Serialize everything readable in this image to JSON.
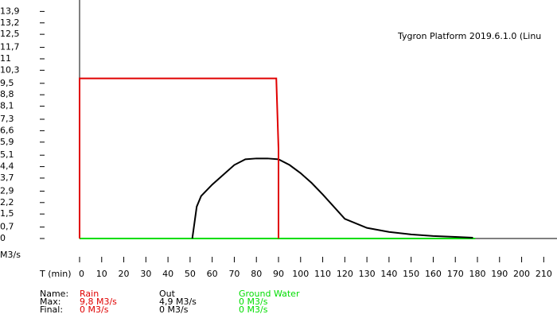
{
  "chart_data": {
    "type": "line",
    "title": "Tygron Platform 2019.6.1.0 (Linu",
    "y_label": "M3/s",
    "x_label": "T (min)",
    "xlim": [
      0,
      216
    ],
    "ylim": [
      0,
      14.6
    ],
    "xticks": [
      0,
      10,
      20,
      30,
      40,
      50,
      60,
      70,
      80,
      90,
      100,
      110,
      120,
      130,
      140,
      150,
      160,
      170,
      180,
      190,
      200,
      210
    ],
    "yticks": [
      {
        "value": 0,
        "label": "0"
      },
      {
        "value": 0.7,
        "label": "0,7"
      },
      {
        "value": 1.5,
        "label": "1,5"
      },
      {
        "value": 2.2,
        "label": "2,2"
      },
      {
        "value": 2.9,
        "label": "2,9"
      },
      {
        "value": 3.7,
        "label": "3,7"
      },
      {
        "value": 4.4,
        "label": "4,4"
      },
      {
        "value": 5.1,
        "label": "5,1"
      },
      {
        "value": 5.9,
        "label": "5,9"
      },
      {
        "value": 6.6,
        "label": "6,6"
      },
      {
        "value": 7.3,
        "label": "7,3"
      },
      {
        "value": 8.1,
        "label": "8,1"
      },
      {
        "value": 8.8,
        "label": "8,8"
      },
      {
        "value": 9.5,
        "label": "9,5"
      },
      {
        "value": 10.3,
        "label": "10,3"
      },
      {
        "value": 11,
        "label": "11"
      },
      {
        "value": 11.7,
        "label": "11,7"
      },
      {
        "value": 12.5,
        "label": "12,5"
      },
      {
        "value": 13.2,
        "label": "13,2"
      },
      {
        "value": 13.9,
        "label": "13,9"
      }
    ],
    "series": [
      {
        "name": "Rain",
        "color": "#e00000",
        "x": [
          0,
          0,
          89,
          90,
          90
        ],
        "values": [
          0,
          9.8,
          9.8,
          5.5,
          0
        ]
      },
      {
        "name": "Out",
        "color": "#000000",
        "x": [
          51,
          53,
          55,
          60,
          65,
          70,
          75,
          80,
          85,
          90,
          95,
          100,
          105,
          110,
          120,
          130,
          140,
          150,
          160,
          170,
          178
        ],
        "values": [
          0,
          1.95,
          2.6,
          3.3,
          3.9,
          4.5,
          4.85,
          4.9,
          4.9,
          4.85,
          4.5,
          4.0,
          3.4,
          2.7,
          1.2,
          0.65,
          0.4,
          0.25,
          0.15,
          0.1,
          0.05
        ]
      },
      {
        "name": "Ground Water",
        "color": "#00dd00",
        "x": [
          0,
          179
        ],
        "values": [
          0,
          0
        ]
      }
    ],
    "summary": {
      "row_labels": [
        "Name:",
        "Max:",
        "Final:"
      ],
      "max": [
        "9,8 M3/s",
        "4,9 M3/s",
        "0 M3/s"
      ],
      "final": [
        "0 M3/s",
        "0 M3/s",
        "0 M3/s"
      ]
    }
  }
}
